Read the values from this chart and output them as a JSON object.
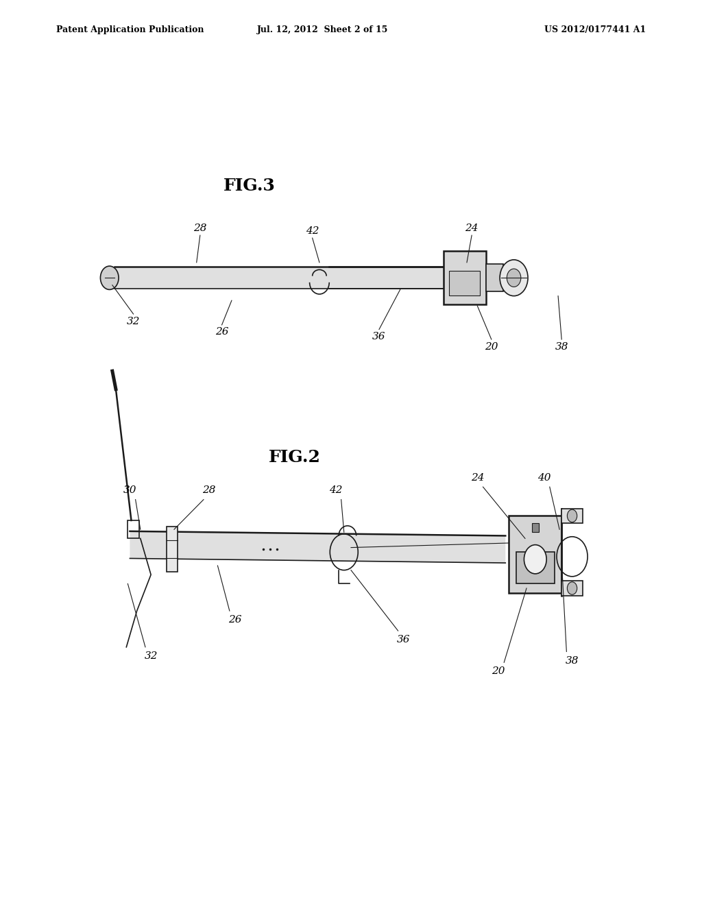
{
  "background_color": "#ffffff",
  "header_left": "Patent Application Publication",
  "header_center": "Jul. 12, 2012  Sheet 2 of 15",
  "header_right": "US 2012/0177441 A1",
  "fig2_label": "FIG.2",
  "fig3_label": "FIG.3"
}
